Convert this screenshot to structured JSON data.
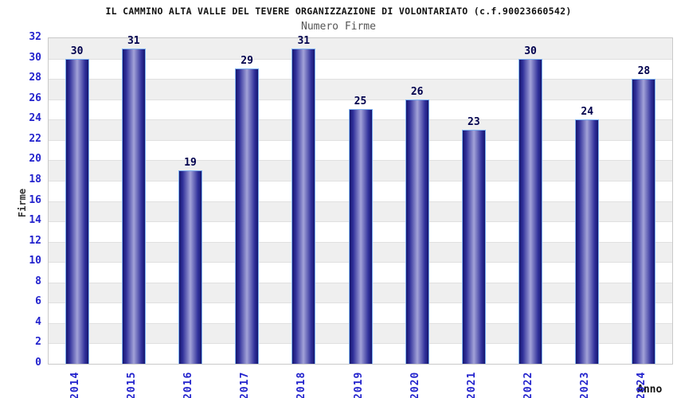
{
  "chart_data": {
    "type": "bar",
    "title": "IL CAMMINO ALTA VALLE DEL TEVERE ORGANIZZAZIONE DI VOLONTARIATO (c.f.90023660542)",
    "subtitle": "Numero Firme",
    "xlabel": "Anno",
    "ylabel": "Firme",
    "categories": [
      "2014",
      "2015",
      "2016",
      "2017",
      "2018",
      "2019",
      "2020",
      "2021",
      "2022",
      "2023",
      "2024"
    ],
    "values": [
      30,
      31,
      19,
      29,
      31,
      25,
      26,
      23,
      30,
      24,
      28
    ],
    "ylim": [
      0,
      32
    ],
    "ytick_step": 2,
    "yticks": [
      0,
      2,
      4,
      6,
      8,
      10,
      12,
      14,
      16,
      18,
      20,
      22,
      24,
      26,
      28,
      30,
      32
    ],
    "grid": true,
    "legend": null,
    "band_stripes": true
  },
  "colors": {
    "tick_label_blue": "#2323cd",
    "bar_value_navy": "#00004d",
    "bar_edge_dark": "#16166f",
    "bar_center_light": "#a2a2d8",
    "bar_border_lightblue": "#7db0f0",
    "band_gray": "#efefef",
    "band_white": "#ffffff",
    "gridline": "#e0e0e0",
    "plot_border": "#c9c9c9",
    "title_color": "#111111",
    "subtitle_gray": "#555555"
  }
}
